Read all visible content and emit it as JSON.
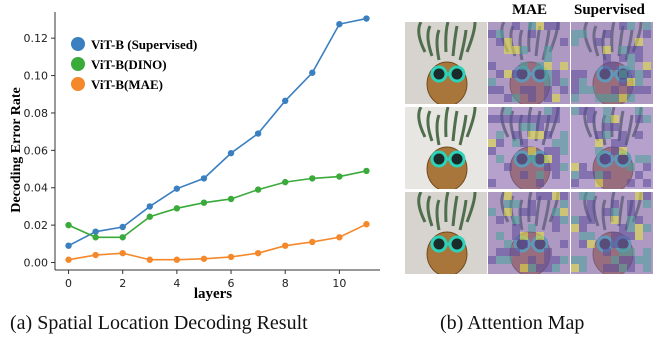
{
  "chart_data": {
    "type": "line",
    "title": "",
    "xlabel": "layers",
    "ylabel": "Decoding Error Rate",
    "xlim": [
      -0.5,
      11.5
    ],
    "ylim": [
      -0.004,
      0.134
    ],
    "x_ticks": [
      0,
      2,
      4,
      6,
      8,
      10
    ],
    "y_ticks": [
      0.0,
      0.02,
      0.04,
      0.06,
      0.08,
      0.1,
      0.12
    ],
    "y_tick_labels": [
      "0.00",
      "0.02",
      "0.04",
      "0.06",
      "0.08",
      "0.10",
      "0.12"
    ],
    "grid": false,
    "legend": "top-left",
    "x": [
      0,
      1,
      2,
      3,
      4,
      5,
      6,
      7,
      8,
      9,
      10,
      11
    ],
    "series": [
      {
        "name": "ViT-B (Supervised)",
        "color": "#3a7fc0",
        "values": [
          0.009,
          0.0165,
          0.019,
          0.03,
          0.0395,
          0.045,
          0.0585,
          0.069,
          0.0865,
          0.1015,
          0.1275,
          0.1305
        ]
      },
      {
        "name": "ViT-B(DINO)",
        "color": "#3aaa3a",
        "values": [
          0.02,
          0.0135,
          0.0135,
          0.0245,
          0.029,
          0.032,
          0.034,
          0.039,
          0.043,
          0.045,
          0.046,
          0.049
        ]
      },
      {
        "name": "ViT-B(MAE)",
        "color": "#f5882b",
        "values": [
          0.0015,
          0.004,
          0.005,
          0.0015,
          0.0015,
          0.002,
          0.003,
          0.005,
          0.009,
          0.011,
          0.0135,
          0.0205
        ]
      }
    ]
  },
  "captions": {
    "a": "(a) Spatial Location Decoding Result",
    "b": "(b) Attention Map"
  },
  "attention_map": {
    "col_headers": [
      "MAE",
      "Supervised"
    ],
    "overlay_color": "#8a68b8",
    "highlight_color": "#e7e83a"
  }
}
